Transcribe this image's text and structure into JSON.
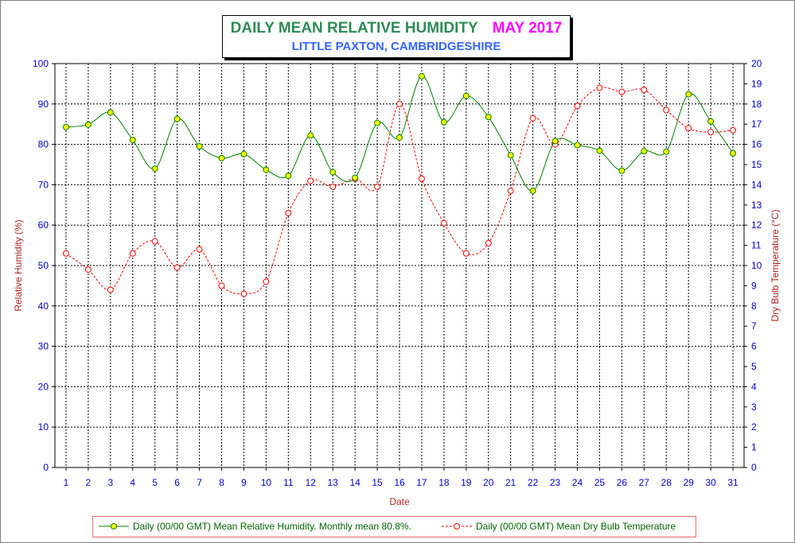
{
  "title": {
    "main": "DAILY MEAN RELATIVE HUMIDITY",
    "month": "MAY 2017",
    "subtitle": "LITTLE PAXTON, CAMBRIDGESHIRE"
  },
  "colors": {
    "humidity_line": "#008000",
    "humidity_marker": "#ffff00",
    "temperature_line": "#ff0000",
    "left_axis_label": "#b22222",
    "tick_labels": "#0000cd",
    "title_main": "#2e8b57",
    "title_month": "#ff00ff",
    "subtitle": "#3366ff"
  },
  "chart_data": {
    "type": "line",
    "xlabel": "Date",
    "ylabel": "Relative Humidity (%)",
    "y2label": "Dry Bulb Temperature (°C)",
    "x": [
      1,
      2,
      3,
      4,
      5,
      6,
      7,
      8,
      9,
      10,
      11,
      12,
      13,
      14,
      15,
      16,
      17,
      18,
      19,
      20,
      21,
      22,
      23,
      24,
      25,
      26,
      27,
      28,
      29,
      30,
      31
    ],
    "xlim": [
      0.5,
      31.5
    ],
    "ylim": [
      0,
      100
    ],
    "y2lim": [
      0,
      20
    ],
    "yticks": [
      0,
      10,
      20,
      30,
      40,
      50,
      60,
      70,
      80,
      90,
      100
    ],
    "y2ticks": [
      0,
      1,
      2,
      3,
      4,
      5,
      6,
      7,
      8,
      9,
      10,
      11,
      12,
      13,
      14,
      15,
      16,
      17,
      18,
      19,
      20
    ],
    "grid": true,
    "legend_position": "bottom",
    "series": [
      {
        "name": "Daily (00/00 GMT) Mean Relative Humidity. Monthly mean 80.8%.",
        "axis": "left",
        "style": "solid smooth line with filled yellow circle markers",
        "values": [
          84.3,
          84.9,
          87.9,
          81.1,
          74.0,
          86.3,
          79.5,
          76.6,
          77.6,
          73.7,
          72.2,
          82.2,
          73.1,
          71.7,
          85.3,
          81.7,
          96.9,
          85.5,
          92.0,
          86.8,
          77.3,
          68.5,
          80.8,
          79.8,
          78.4,
          73.5,
          78.3,
          78.2,
          92.4,
          85.7,
          77.8
        ]
      },
      {
        "name": "Daily (00/00 GMT) Mean Dry Bulb Temperature",
        "axis": "right",
        "style": "dashed smooth line with open circle markers",
        "values": [
          10.6,
          9.8,
          8.8,
          10.6,
          11.2,
          9.9,
          10.8,
          9.0,
          8.6,
          9.2,
          12.6,
          14.2,
          13.9,
          14.3,
          13.9,
          18.0,
          14.3,
          12.1,
          10.6,
          11.1,
          13.7,
          17.3,
          16.0,
          17.9,
          18.8,
          18.6,
          18.7,
          17.7,
          16.8,
          16.6,
          16.7
        ]
      }
    ]
  }
}
